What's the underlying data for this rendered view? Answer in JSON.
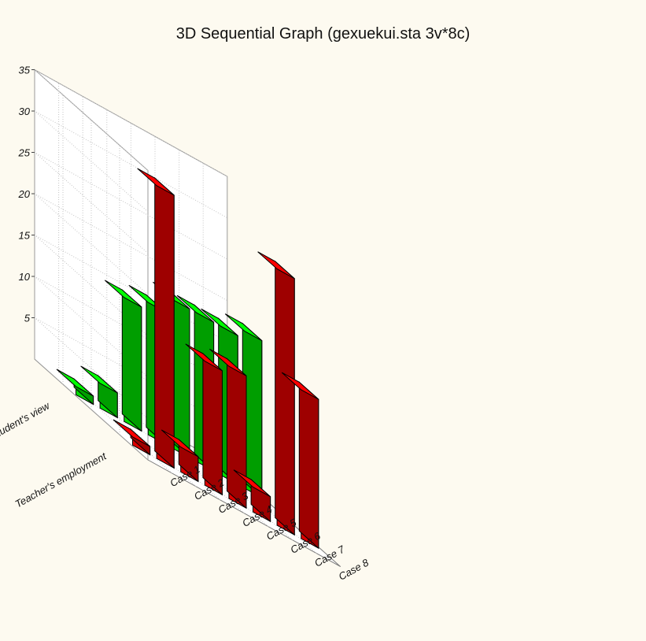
{
  "chart_data": {
    "type": "bar3d",
    "title": "3D Sequential Graph (gexuekui.sta 3v*8c)",
    "categories": [
      "Case 1",
      "Case 2",
      "Case 3",
      "Case 4",
      "Case 5",
      "Case 6",
      "Case 7",
      "Case 8"
    ],
    "series": [
      {
        "name": "Teacher's employment",
        "values": [
          1,
          33,
          3,
          15,
          16,
          3,
          31,
          18
        ]
      },
      {
        "name": "Student's view",
        "values": [
          1,
          3,
          15,
          16,
          18,
          18,
          18,
          19
        ]
      }
    ],
    "zlim": [
      0,
      35
    ],
    "z_ticks": [
      5,
      10,
      15,
      20,
      25,
      30,
      35
    ],
    "colors": {
      "Teacher's employment": "#ff0000",
      "Student's view": "#00ff00"
    },
    "grid": true,
    "background": "#fdfaf0"
  }
}
